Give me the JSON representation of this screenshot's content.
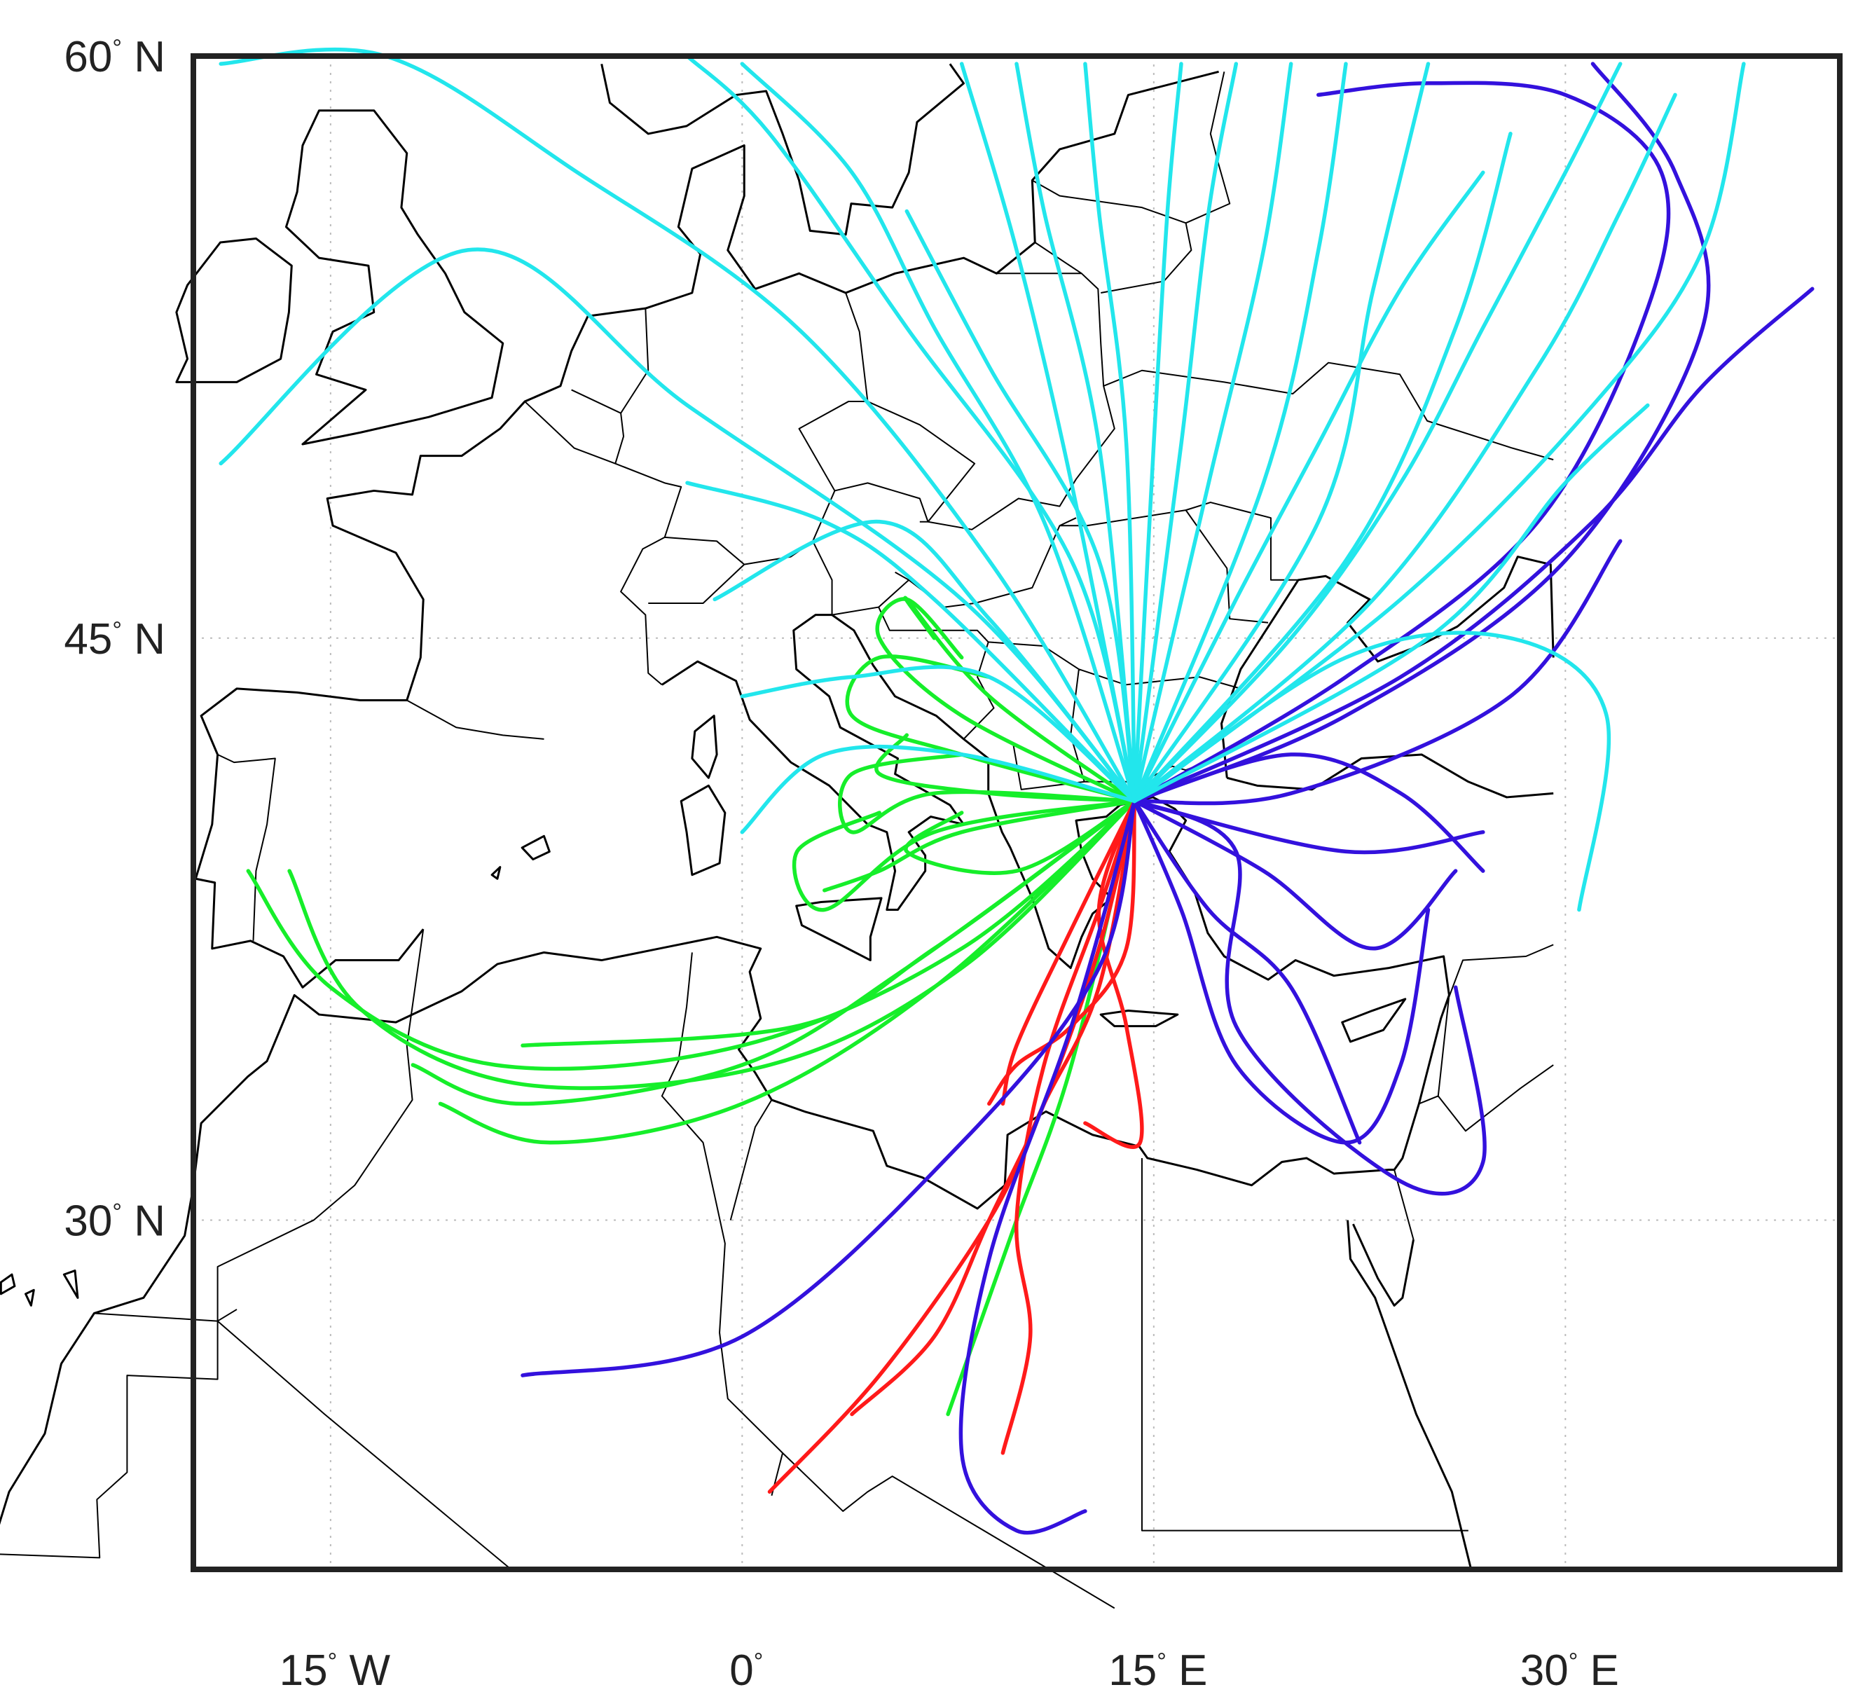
{
  "map": {
    "lon_range": [
      -20,
      40
    ],
    "lat_range": [
      21,
      60
    ],
    "grid": true,
    "frame": true
  },
  "axis": {
    "y_ticks": [
      {
        "value": 60,
        "num": "60",
        "deg": "°",
        "hemi": "N"
      },
      {
        "value": 45,
        "num": "45",
        "deg": "°",
        "hemi": "N"
      },
      {
        "value": 30,
        "num": "30",
        "deg": "°",
        "hemi": "N"
      }
    ],
    "x_ticks": [
      {
        "value": -15,
        "num": "15",
        "deg": "°",
        "hemi": "W"
      },
      {
        "value": 0,
        "num": "0",
        "deg": "°",
        "hemi": ""
      },
      {
        "value": 15,
        "num": "15",
        "deg": "°",
        "hemi": "E"
      },
      {
        "value": 30,
        "num": "30",
        "deg": "°",
        "hemi": "E"
      }
    ]
  },
  "trajectory_colors": {
    "cyan": "#22e6ec",
    "blue": "#3311dd",
    "green": "#16ee2a",
    "red": "#ff1a1a"
  },
  "origin": {
    "lon": 14.3,
    "lat": 40.8
  },
  "trajectories": {
    "cyan": [
      [
        [
          14.3,
          40.8
        ],
        [
          9,
          47
        ],
        [
          2,
          53
        ],
        [
          -6,
          57
        ],
        [
          -13,
          60
        ],
        [
          -19,
          59.8
        ]
      ],
      [
        [
          14.3,
          40.8
        ],
        [
          8,
          46
        ],
        [
          -2,
          51
        ],
        [
          -10,
          55
        ],
        [
          -19,
          49.5
        ]
      ],
      [
        [
          14.3,
          40.8
        ],
        [
          12,
          47
        ],
        [
          6,
          53
        ],
        [
          1,
          58
        ],
        [
          -2,
          60
        ]
      ],
      [
        [
          14.3,
          40.8
        ],
        [
          11,
          48
        ],
        [
          7,
          53
        ],
        [
          4,
          57
        ],
        [
          0,
          59.8
        ]
      ],
      [
        [
          14.3,
          40.8
        ],
        [
          12,
          49
        ],
        [
          10,
          55
        ],
        [
          8,
          59.8
        ]
      ],
      [
        [
          14.3,
          40.8
        ],
        [
          13,
          50
        ],
        [
          11,
          56
        ],
        [
          10,
          59.8
        ]
      ],
      [
        [
          14.3,
          40.8
        ],
        [
          14,
          50
        ],
        [
          13,
          56
        ],
        [
          12.5,
          59.8
        ]
      ],
      [
        [
          14.3,
          40.8
        ],
        [
          15,
          50
        ],
        [
          15.5,
          56
        ],
        [
          16,
          59.8
        ]
      ],
      [
        [
          14.3,
          40.8
        ],
        [
          16,
          50
        ],
        [
          17,
          56
        ],
        [
          18,
          59.8
        ]
      ],
      [
        [
          14.3,
          40.8
        ],
        [
          17,
          49
        ],
        [
          19,
          55
        ],
        [
          20,
          59.8
        ]
      ],
      [
        [
          14.3,
          40.8
        ],
        [
          19,
          49
        ],
        [
          21,
          55
        ],
        [
          22,
          59.8
        ]
      ],
      [
        [
          14.3,
          40.8
        ],
        [
          21,
          48
        ],
        [
          23,
          54
        ],
        [
          25,
          59.8
        ]
      ],
      [
        [
          14.3,
          40.8
        ],
        [
          22,
          47
        ],
        [
          26,
          53
        ],
        [
          28,
          58
        ]
      ],
      [
        [
          14.3,
          40.8
        ],
        [
          23,
          46
        ],
        [
          29,
          52
        ],
        [
          32,
          56
        ],
        [
          34,
          59
        ]
      ],
      [
        [
          14.3,
          40.8
        ],
        [
          24,
          46
        ],
        [
          31,
          51
        ],
        [
          35,
          55
        ],
        [
          36.5,
          59.8
        ]
      ],
      [
        [
          14.3,
          40.8
        ],
        [
          25,
          45
        ],
        [
          30,
          49
        ],
        [
          33,
          51
        ]
      ],
      [
        [
          14.3,
          40.8
        ],
        [
          7,
          46
        ],
        [
          3,
          48
        ],
        [
          -2,
          49
        ]
      ],
      [
        [
          14.3,
          40.8
        ],
        [
          9,
          45.5
        ],
        [
          5,
          48
        ],
        [
          -1,
          46
        ]
      ],
      [
        [
          14.3,
          40.8
        ],
        [
          8,
          42
        ],
        [
          3,
          42
        ],
        [
          0,
          40
        ]
      ],
      [
        [
          14.3,
          40.8
        ],
        [
          9,
          44
        ],
        [
          4,
          44
        ],
        [
          0,
          43.5
        ]
      ],
      [
        [
          14.3,
          40.8
        ],
        [
          22,
          44.5
        ],
        [
          28,
          45
        ],
        [
          31.5,
          43
        ],
        [
          30.5,
          38
        ]
      ],
      [
        [
          14.3,
          40.8
        ],
        [
          18,
          46
        ],
        [
          21,
          50
        ],
        [
          24,
          54
        ],
        [
          27,
          57
        ]
      ],
      [
        [
          14.3,
          40.8
        ],
        [
          13,
          47
        ],
        [
          9,
          52
        ],
        [
          6,
          56
        ]
      ],
      [
        [
          14.3,
          40.8
        ],
        [
          20,
          45
        ],
        [
          24,
          49
        ],
        [
          27,
          53
        ],
        [
          30,
          57
        ],
        [
          32,
          59.8
        ]
      ]
    ],
    "blue": [
      [
        [
          14.3,
          40.8
        ],
        [
          22,
          44
        ],
        [
          29,
          48
        ],
        [
          33,
          53.5
        ],
        [
          33.5,
          57
        ],
        [
          30,
          59
        ],
        [
          25,
          59.3
        ],
        [
          21,
          59
        ]
      ],
      [
        [
          14.3,
          40.8
        ],
        [
          22,
          43
        ],
        [
          30,
          47
        ],
        [
          35,
          53
        ],
        [
          34,
          57
        ],
        [
          31,
          59.8
        ]
      ],
      [
        [
          14.3,
          40.8
        ],
        [
          24,
          44
        ],
        [
          31,
          48
        ],
        [
          35,
          51.5
        ],
        [
          39,
          54
        ]
      ],
      [
        [
          14.3,
          40.8
        ],
        [
          20,
          41
        ],
        [
          28,
          43.5
        ],
        [
          32,
          47.5
        ]
      ],
      [
        [
          14.3,
          40.8
        ],
        [
          18,
          39.5
        ],
        [
          18,
          35
        ],
        [
          24,
          31
        ],
        [
          27,
          31.5
        ],
        [
          26,
          36
        ]
      ],
      [
        [
          14.3,
          40.8
        ],
        [
          16,
          38
        ],
        [
          18,
          34
        ],
        [
          22,
          32
        ],
        [
          24,
          34
        ],
        [
          25,
          38
        ]
      ],
      [
        [
          14.3,
          40.8
        ],
        [
          13,
          36.5
        ],
        [
          8,
          32
        ],
        [
          0,
          27
        ],
        [
          -8,
          26
        ]
      ],
      [
        [
          14.3,
          40.8
        ],
        [
          12,
          35
        ],
        [
          9,
          29
        ],
        [
          8,
          24
        ],
        [
          10,
          22
        ],
        [
          12.5,
          22.5
        ]
      ],
      [
        [
          14.3,
          40.8
        ],
        [
          19,
          39
        ],
        [
          23,
          37
        ],
        [
          26,
          39
        ]
      ],
      [
        [
          14.3,
          40.8
        ],
        [
          17,
          38
        ],
        [
          20,
          36
        ],
        [
          22.5,
          32
        ]
      ],
      [
        [
          14.3,
          40.8
        ],
        [
          22,
          39.5
        ],
        [
          27,
          40
        ]
      ],
      [
        [
          14.3,
          40.8
        ],
        [
          20,
          42
        ],
        [
          24,
          41
        ],
        [
          27,
          39
        ]
      ]
    ],
    "green": [
      [
        [
          14.3,
          40.8
        ],
        [
          8,
          37
        ],
        [
          0,
          34.5
        ],
        [
          -9,
          34
        ],
        [
          -15,
          36
        ],
        [
          -18,
          39
        ]
      ],
      [
        [
          14.3,
          40.8
        ],
        [
          8,
          36.5
        ],
        [
          1,
          34
        ],
        [
          -8,
          33.5
        ],
        [
          -14,
          35.5
        ],
        [
          -16.5,
          39
        ]
      ],
      [
        [
          14.3,
          40.8
        ],
        [
          7,
          36
        ],
        [
          0,
          33
        ],
        [
          -7,
          32
        ],
        [
          -11,
          33
        ]
      ],
      [
        [
          14.3,
          40.8
        ],
        [
          6,
          36.5
        ],
        [
          0,
          34
        ],
        [
          -8,
          33
        ],
        [
          -12,
          34
        ]
      ],
      [
        [
          14.3,
          40.8
        ],
        [
          7,
          37
        ],
        [
          2,
          35
        ],
        [
          -8,
          34.5
        ]
      ],
      [
        [
          14.3,
          40.8
        ],
        [
          7,
          40
        ],
        [
          3,
          38
        ],
        [
          2,
          39.5
        ],
        [
          5,
          40.5
        ]
      ],
      [
        [
          14.3,
          40.8
        ],
        [
          7,
          41
        ],
        [
          4,
          40
        ],
        [
          4,
          41.5
        ],
        [
          8,
          42
        ]
      ],
      [
        [
          14.3,
          40.8
        ],
        [
          8,
          42
        ],
        [
          4,
          43
        ],
        [
          5,
          44.5
        ],
        [
          9,
          44
        ]
      ],
      [
        [
          14.3,
          40.8
        ],
        [
          8,
          43
        ],
        [
          5,
          45
        ],
        [
          6,
          46
        ],
        [
          8,
          44.5
        ]
      ],
      [
        [
          14.3,
          40.8
        ],
        [
          9,
          43.5
        ],
        [
          6,
          46
        ],
        [
          7,
          45
        ]
      ],
      [
        [
          14.3,
          40.8
        ],
        [
          8,
          40
        ],
        [
          5,
          39
        ],
        [
          3,
          38.5
        ]
      ],
      [
        [
          14.3,
          40.8
        ],
        [
          9,
          41
        ],
        [
          5,
          41.5
        ],
        [
          6,
          42.5
        ]
      ],
      [
        [
          14.3,
          40.8
        ],
        [
          12,
          34
        ],
        [
          10,
          30
        ],
        [
          9,
          28
        ],
        [
          7.5,
          25
        ]
      ],
      [
        [
          14.3,
          40.8
        ],
        [
          10,
          39
        ],
        [
          6,
          39.5
        ],
        [
          8,
          40.5
        ]
      ]
    ],
    "red": [
      [
        [
          14.3,
          40.8
        ],
        [
          13,
          36
        ],
        [
          11,
          33
        ],
        [
          9,
          30
        ],
        [
          5,
          26
        ],
        [
          1,
          23
        ]
      ],
      [
        [
          14.3,
          40.8
        ],
        [
          13,
          37
        ],
        [
          11,
          33
        ],
        [
          9,
          30
        ],
        [
          7,
          27
        ],
        [
          4,
          25
        ]
      ],
      [
        [
          14.3,
          40.8
        ],
        [
          13,
          38
        ],
        [
          11,
          34
        ],
        [
          10,
          30
        ],
        [
          10.5,
          27
        ],
        [
          9.5,
          24
        ]
      ],
      [
        [
          14.3,
          40.8
        ],
        [
          14,
          37
        ],
        [
          12,
          35
        ],
        [
          10,
          34
        ],
        [
          9,
          33
        ]
      ],
      [
        [
          14.3,
          40.8
        ],
        [
          13,
          38
        ],
        [
          14,
          35
        ],
        [
          14.5,
          32
        ],
        [
          12.5,
          32.5
        ]
      ],
      [
        [
          14.3,
          40.8
        ],
        [
          12,
          37.5
        ],
        [
          10,
          34.5
        ],
        [
          9.5,
          33
        ]
      ]
    ]
  }
}
